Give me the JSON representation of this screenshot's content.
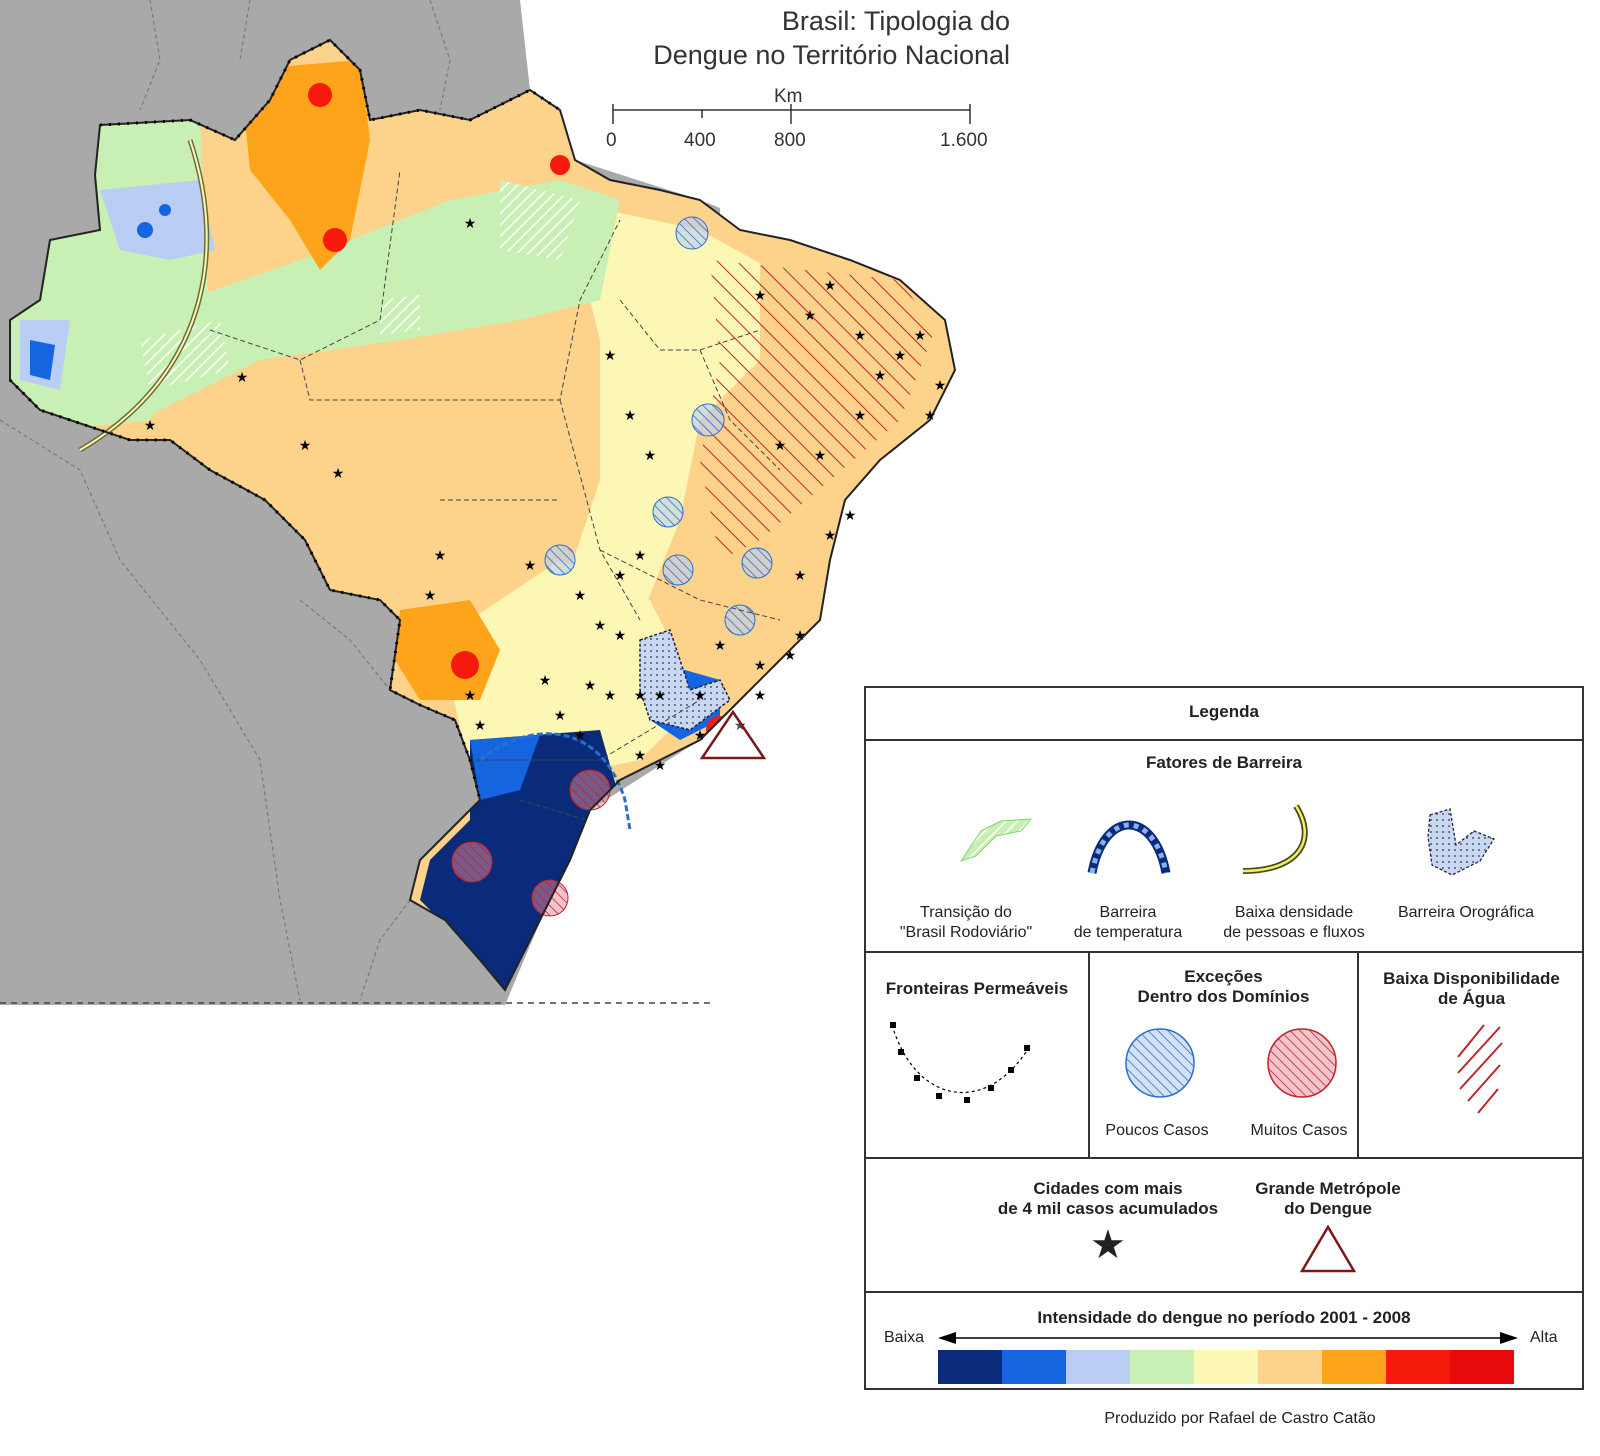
{
  "title": {
    "line1": "Brasil: Tipologia do",
    "line2": "Dengue no Território Nacional"
  },
  "scale": {
    "unit": "Km",
    "ticks": [
      "0",
      "400",
      "800",
      "1.600"
    ]
  },
  "legend": {
    "title": "Legenda",
    "barrier_section": {
      "title": "Fatores de Barreira",
      "items": [
        {
          "label1": "Transição do",
          "label2": "\"Brasil Rodoviário\"",
          "icon": "green-hatch-icon"
        },
        {
          "label1": "Barreira",
          "label2": "de temperatura",
          "icon": "temperature-arc-icon"
        },
        {
          "label1": "Baixa densidade",
          "label2": "de pessoas e fluxos",
          "icon": "yellow-line-icon"
        },
        {
          "label1": "Barreira Orográfica",
          "label2": "",
          "icon": "dotted-shape-icon"
        }
      ]
    },
    "borders": {
      "title": "Fronteiras Permeáveis",
      "icon": "dotted-border-icon"
    },
    "exceptions": {
      "title1": "Exceções",
      "title2": "Dentro dos Domínios",
      "few": "Poucos Casos",
      "many": "Muitos Casos",
      "few_color": "#2a6fcc",
      "many_color": "#c0242a"
    },
    "water": {
      "title1": "Baixa Disponibilidade",
      "title2": "de Água",
      "icon": "red-hatch-icon"
    },
    "cities": {
      "title1": "Cidades com mais",
      "title2": "de 4 mil casos acumulados",
      "icon": "star-icon"
    },
    "metropolis": {
      "title1": "Grande Metrópole",
      "title2": "do Dengue",
      "icon": "triangle-icon"
    },
    "intensity": {
      "title": "Intensidade do dengue no período 2001 - 2008",
      "low": "Baixa",
      "high": "Alta",
      "colors": [
        "#0a2a7a",
        "#1565e0",
        "#b9cdf5",
        "#c9f0b4",
        "#fdf7b5",
        "#fdd28a",
        "#fda41a",
        "#f51a0c",
        "#e80a0a"
      ]
    }
  },
  "credit": "Produzido por Rafael de Castro Catão",
  "colors": {
    "neighbor": "#a9a9a9",
    "ocean": "#ffffff"
  }
}
